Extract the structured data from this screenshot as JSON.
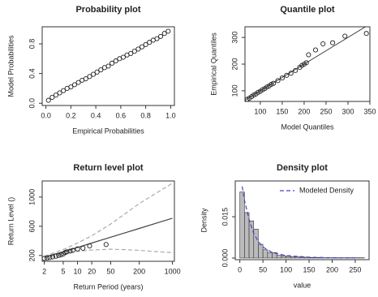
{
  "chart_data": [
    {
      "type": "scatter",
      "title": "Probability plot",
      "x_label": "Empirical Probabilities",
      "y_label": "Model Probabilities",
      "x": [
        0.02,
        0.05,
        0.08,
        0.11,
        0.14,
        0.17,
        0.2,
        0.23,
        0.26,
        0.29,
        0.32,
        0.35,
        0.38,
        0.41,
        0.44,
        0.47,
        0.5,
        0.53,
        0.56,
        0.59,
        0.62,
        0.65,
        0.68,
        0.71,
        0.74,
        0.77,
        0.8,
        0.83,
        0.86,
        0.89,
        0.92,
        0.95,
        0.98
      ],
      "values": [
        0.04,
        0.08,
        0.11,
        0.14,
        0.17,
        0.2,
        0.22,
        0.25,
        0.28,
        0.31,
        0.33,
        0.36,
        0.39,
        0.42,
        0.45,
        0.48,
        0.5,
        0.54,
        0.57,
        0.6,
        0.62,
        0.65,
        0.67,
        0.7,
        0.73,
        0.76,
        0.79,
        0.82,
        0.85,
        0.87,
        0.9,
        0.94,
        0.97
      ],
      "color": "#222",
      "diagonal": false,
      "xlim": [
        -0.03,
        1.03
      ],
      "ylim": [
        -0.03,
        1.03
      ],
      "xticks": [
        {
          "value": 0,
          "label": "0.0"
        },
        {
          "value": 0.2,
          "label": "0.2"
        },
        {
          "value": 0.4,
          "label": "0.4"
        },
        {
          "value": 0.6,
          "label": "0.6"
        },
        {
          "value": 0.8,
          "label": "0.8"
        },
        {
          "value": 1,
          "label": "1.0"
        }
      ],
      "yticks": [
        {
          "value": 0,
          "label": "0.0"
        },
        {
          "value": 0.4,
          "label": "0.4"
        },
        {
          "value": 0.8,
          "label": "0.8"
        }
      ]
    },
    {
      "type": "scatter",
      "title": "Quantile plot",
      "x_label": "Model Quantiles",
      "y_label": "Empirical Quantiles",
      "x": [
        70,
        75,
        80,
        85,
        90,
        95,
        100,
        105,
        110,
        115,
        120,
        125,
        130,
        140,
        150,
        160,
        170,
        180,
        190,
        195,
        200,
        205,
        210,
        226,
        243,
        265,
        293,
        342
      ],
      "values": [
        68,
        72,
        78,
        84,
        88,
        94,
        98,
        104,
        108,
        114,
        118,
        124,
        128,
        138,
        148,
        158,
        166,
        176,
        188,
        195,
        200,
        205,
        235,
        253,
        276,
        280,
        305,
        315
      ],
      "color": "#222",
      "diagonal": true,
      "xlim": [
        65,
        350
      ],
      "ylim": [
        60,
        340
      ],
      "xticks": [
        100,
        150,
        200,
        250,
        300,
        350
      ],
      "yticks": [
        100,
        200,
        300
      ]
    },
    {
      "type": "line",
      "title": "Return level plot",
      "x_label": "Return Period (years)",
      "y_label": "Return Level ()",
      "xlog": true,
      "xlim": [
        1.8,
        1100
      ],
      "ylim": [
        120,
        1220
      ],
      "xticks": [
        2,
        5,
        10,
        20,
        50,
        200,
        1000
      ],
      "yticks": [
        200,
        600,
        1000
      ],
      "series": [
        {
          "style": "solid",
          "color": "#444",
          "x": [
            2,
            5,
            10,
            20,
            50,
            100,
            200,
            500,
            1000
          ],
          "values": [
            180,
            250,
            310,
            370,
            450,
            510,
            570,
            650,
            710
          ]
        },
        {
          "style": "dashed",
          "color": "#aaa",
          "x": [
            2,
            5,
            10,
            20,
            50,
            100,
            200,
            500,
            1000
          ],
          "values": [
            190,
            280,
            370,
            470,
            630,
            770,
            910,
            1070,
            1190
          ]
        },
        {
          "style": "dashed",
          "color": "#aaa",
          "x": [
            2,
            5,
            10,
            20,
            50,
            100,
            200,
            500,
            1000
          ],
          "values": [
            170,
            225,
            255,
            275,
            285,
            280,
            270,
            250,
            240
          ]
        },
        {
          "style": "points",
          "color": "#222",
          "x": [
            2,
            2.3,
            2.6,
            3,
            3.5,
            4,
            4.5,
            5,
            5.5,
            6,
            7,
            8,
            10,
            13,
            18,
            40
          ],
          "values": [
            160,
            165,
            170,
            180,
            190,
            200,
            210,
            220,
            240,
            250,
            260,
            270,
            290,
            300,
            330,
            350
          ]
        }
      ]
    },
    {
      "type": "histogram",
      "title": "Density plot",
      "x_label": "value",
      "y_label": "Density",
      "bins": [
        0,
        10,
        20,
        30,
        40,
        50,
        60,
        70,
        80,
        90,
        100,
        110,
        120,
        130,
        140,
        150,
        160,
        170,
        180,
        190,
        200,
        210,
        220,
        230,
        240,
        250,
        260,
        270
      ],
      "values": [
        0.024,
        0.0165,
        0.0135,
        0.0105,
        0.005,
        0.003,
        0.002,
        0.002,
        0.001,
        0.0008,
        0.0006,
        0.0005,
        0.0004,
        0.0003,
        0.0003,
        0.0002,
        0.0002,
        0.0002,
        0.0001,
        0.0001,
        0.0001,
        0.0001,
        0.0001,
        0.0001,
        0.0001,
        0.0001,
        0.0001
      ],
      "color": "#bbbbbb",
      "legend": "top-right",
      "xlim": [
        -10,
        280
      ],
      "ylim": [
        -0.0006,
        0.028
      ],
      "xticks": [
        0,
        50,
        100,
        150,
        200,
        250
      ],
      "yticks": [
        {
          "value": 0,
          "label": "0.000"
        },
        {
          "value": 0.015,
          "label": "0.015"
        }
      ],
      "series": [
        {
          "name": "Modeled Density",
          "color": "#4444cc",
          "x": [
            5,
            10,
            20,
            30,
            40,
            50,
            70,
            100,
            150,
            200,
            250
          ],
          "values": [
            0.026,
            0.021,
            0.014,
            0.009,
            0.006,
            0.004,
            0.002,
            0.0009,
            0.0003,
            0.0001,
            5e-05
          ]
        }
      ]
    }
  ]
}
